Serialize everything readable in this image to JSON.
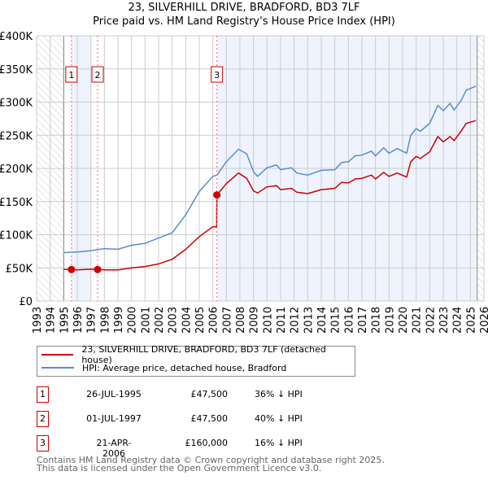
{
  "title": "23, SILVERHILL DRIVE, BRADFORD, BD3 7LF",
  "subtitle": "Price paid vs. HM Land Registry's House Price Index (HPI)",
  "colors": {
    "property": "#cc0000",
    "hpi": "#5b8bd0",
    "shade": "#eef3fd"
  },
  "chart_data": {
    "type": "line",
    "xlim": [
      1993,
      2026
    ],
    "ylim": [
      0,
      400000
    ],
    "yticks": [
      0,
      50000,
      100000,
      150000,
      200000,
      250000,
      300000,
      350000,
      400000
    ],
    "ytick_labels": [
      "£0",
      "£50K",
      "£100K",
      "£150K",
      "£200K",
      "£250K",
      "£300K",
      "£350K",
      "£400K"
    ],
    "xticks": [
      1993,
      1994,
      1995,
      1996,
      1997,
      1998,
      1999,
      2000,
      2001,
      2002,
      2003,
      2004,
      2005,
      2006,
      2007,
      2008,
      2009,
      2010,
      2011,
      2012,
      2013,
      2014,
      2015,
      2016,
      2017,
      2018,
      2019,
      2020,
      2021,
      2022,
      2023,
      2024,
      2025,
      2026
    ],
    "grid": true,
    "data_start": 1995.0,
    "data_end": 2025.5,
    "series": [
      {
        "name": "23, SILVERHILL DRIVE, BRADFORD, BD3 7LF (detached house)",
        "color": "#cc0000",
        "x": [
          1995.0,
          1995.57,
          1996,
          1997,
          1997.5,
          1998,
          1999,
          2000,
          2001,
          2002,
          2003,
          2004,
          2005,
          2006,
          2006.28,
          2006.3,
          2007,
          2007.9,
          2008.5,
          2009,
          2009.3,
          2010,
          2010.7,
          2011,
          2011.8,
          2012.2,
          2013,
          2014,
          2015,
          2015.5,
          2016,
          2016.5,
          2017,
          2017.7,
          2018,
          2018.6,
          2019,
          2019.6,
          2020.3,
          2020.6,
          2021,
          2021.3,
          2022,
          2022.6,
          2023,
          2023.5,
          2023.8,
          2024.3,
          2024.7,
          2025.4
        ],
        "values": [
          47500,
          47500,
          47000,
          48000,
          47500,
          47000,
          47000,
          50000,
          52000,
          56000,
          63000,
          78000,
          97000,
          112000,
          112000,
          160000,
          177000,
          193000,
          185000,
          166000,
          163000,
          172000,
          174000,
          168000,
          170000,
          164000,
          162000,
          168000,
          170000,
          179000,
          178000,
          184000,
          185000,
          190000,
          184000,
          194000,
          188000,
          193000,
          187000,
          210000,
          218000,
          215000,
          225000,
          248000,
          240000,
          248000,
          242000,
          256000,
          268000,
          272000
        ]
      },
      {
        "name": "HPI: Average price, detached house, Bradford",
        "color": "#5b8bd0",
        "x": [
          1995.0,
          1996,
          1997,
          1998,
          1999,
          2000,
          2001,
          2002,
          2003,
          2004,
          2005,
          2006,
          2006.3,
          2007,
          2007.9,
          2008.5,
          2009,
          2009.3,
          2010,
          2010.7,
          2011,
          2011.8,
          2012.2,
          2013,
          2014,
          2015,
          2015.5,
          2016,
          2016.5,
          2017,
          2017.7,
          2018,
          2018.6,
          2019,
          2019.6,
          2020.3,
          2020.6,
          2021,
          2021.3,
          2022,
          2022.6,
          2023,
          2023.5,
          2023.8,
          2024.3,
          2024.7,
          2025.4
        ],
        "values": [
          73000,
          74000,
          76000,
          79000,
          78000,
          84000,
          87000,
          95000,
          103000,
          130000,
          165000,
          188000,
          190000,
          210000,
          229000,
          222000,
          195000,
          188000,
          201000,
          205000,
          198000,
          201000,
          193000,
          190000,
          197000,
          198000,
          209000,
          210000,
          219000,
          220000,
          226000,
          219000,
          231000,
          223000,
          230000,
          223000,
          250000,
          260000,
          256000,
          268000,
          295000,
          287000,
          298000,
          288000,
          302000,
          318000,
          324000
        ]
      }
    ],
    "sales": [
      {
        "label": "1",
        "x": 1995.57,
        "value": 47500
      },
      {
        "label": "2",
        "x": 1997.5,
        "value": 47500
      },
      {
        "label": "3",
        "x": 2006.3,
        "value": 160000
      }
    ]
  },
  "legend": {
    "property": "23, SILVERHILL DRIVE, BRADFORD, BD3 7LF (detached house)",
    "hpi": "HPI: Average price, detached house, Bradford"
  },
  "table": [
    {
      "num": "1",
      "date": "26-JUL-1995",
      "price": "£47,500",
      "hpi": "36% ↓ HPI"
    },
    {
      "num": "2",
      "date": "01-JUL-1997",
      "price": "£47,500",
      "hpi": "40% ↓ HPI"
    },
    {
      "num": "3",
      "date": "21-APR-2006",
      "price": "£160,000",
      "hpi": "16% ↓ HPI"
    }
  ],
  "footer": {
    "line1": "Contains HM Land Registry data © Crown copyright and database right 2025.",
    "line2": "This data is licensed under the Open Government Licence v3.0."
  }
}
